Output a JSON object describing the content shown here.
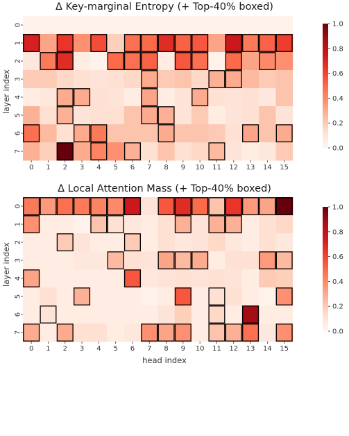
{
  "chart_data": [
    {
      "type": "heatmap",
      "title": "Δ Key-marginal Entropy (+ Top-40% boxed)",
      "xlabel": "",
      "ylabel": "layer index",
      "x_ticks": [
        "0",
        "1",
        "2",
        "3",
        "4",
        "5",
        "6",
        "7",
        "8",
        "9",
        "10",
        "11",
        "12",
        "13",
        "14",
        "15"
      ],
      "y_ticks": [
        "0",
        "1",
        "2",
        "3",
        "4",
        "5",
        "6",
        "7"
      ],
      "colorbar": {
        "min": 0.0,
        "max": 1.0,
        "ticks": [
          "0.0",
          "0.2",
          "0.4",
          "0.6",
          "0.8",
          "1.0"
        ],
        "colormap": "Reds"
      },
      "values": [
        [
          0.02,
          0.02,
          0.02,
          0.02,
          0.02,
          0.02,
          0.02,
          0.02,
          0.02,
          0.02,
          0.02,
          0.02,
          0.02,
          0.02,
          0.02,
          0.02
        ],
        [
          0.72,
          0.32,
          0.65,
          0.38,
          0.58,
          0.18,
          0.48,
          0.5,
          0.68,
          0.52,
          0.55,
          0.32,
          0.75,
          0.45,
          0.52,
          0.62
        ],
        [
          0.08,
          0.45,
          0.68,
          0.05,
          0.02,
          0.5,
          0.48,
          0.52,
          0.05,
          0.55,
          0.48,
          0.02,
          0.5,
          0.32,
          0.4,
          0.38
        ],
        [
          0.2,
          0.2,
          0.15,
          0.12,
          0.1,
          0.12,
          0.15,
          0.3,
          0.2,
          0.22,
          0.15,
          0.28,
          0.3,
          0.25,
          0.2,
          0.22
        ],
        [
          0.05,
          0.08,
          0.3,
          0.3,
          0.12,
          0.1,
          0.05,
          0.32,
          0.05,
          0.1,
          0.3,
          0.12,
          0.1,
          0.12,
          0.08,
          0.22
        ],
        [
          0.28,
          0.12,
          0.28,
          0.1,
          0.12,
          0.12,
          0.22,
          0.3,
          0.28,
          0.1,
          0.2,
          0.05,
          0.1,
          0.12,
          0.22,
          0.1
        ],
        [
          0.48,
          0.25,
          0.12,
          0.3,
          0.45,
          0.22,
          0.22,
          0.22,
          0.3,
          0.22,
          0.22,
          0.2,
          0.12,
          0.32,
          0.22,
          0.3
        ],
        [
          0.28,
          0.18,
          1.0,
          0.3,
          0.42,
          0.38,
          0.28,
          0.12,
          0.22,
          0.12,
          0.15,
          0.25,
          0.1,
          0.05,
          0.08,
          0.2
        ]
      ],
      "boxed": [
        [
          0,
          0,
          0,
          0,
          0,
          0,
          0,
          0,
          0,
          0,
          0,
          0,
          0,
          0,
          0,
          0
        ],
        [
          1,
          0,
          1,
          0,
          1,
          0,
          1,
          1,
          1,
          1,
          1,
          0,
          1,
          1,
          1,
          1
        ],
        [
          0,
          1,
          1,
          0,
          0,
          1,
          1,
          1,
          0,
          1,
          1,
          0,
          1,
          0,
          1,
          0
        ],
        [
          0,
          0,
          0,
          0,
          0,
          0,
          0,
          1,
          0,
          0,
          0,
          1,
          1,
          0,
          0,
          0
        ],
        [
          0,
          0,
          1,
          1,
          0,
          0,
          0,
          1,
          0,
          0,
          1,
          0,
          0,
          0,
          0,
          0
        ],
        [
          0,
          0,
          1,
          0,
          0,
          0,
          0,
          1,
          1,
          0,
          0,
          0,
          0,
          0,
          0,
          0
        ],
        [
          1,
          0,
          0,
          1,
          1,
          0,
          0,
          0,
          1,
          0,
          0,
          0,
          0,
          1,
          0,
          1
        ],
        [
          0,
          0,
          1,
          0,
          1,
          0,
          1,
          0,
          0,
          0,
          0,
          1,
          0,
          0,
          0,
          0
        ]
      ]
    },
    {
      "type": "heatmap",
      "title": "Δ Local Attention Mass (+ Top-40% boxed)",
      "xlabel": "head index",
      "ylabel": "layer index",
      "x_ticks": [
        "0",
        "1",
        "2",
        "3",
        "4",
        "5",
        "6",
        "7",
        "8",
        "9",
        "10",
        "11",
        "12",
        "13",
        "14",
        "15"
      ],
      "y_ticks": [
        "0",
        "1",
        "2",
        "3",
        "4",
        "5",
        "6",
        "7"
      ],
      "colorbar": {
        "min": 0.0,
        "max": 1.0,
        "ticks": [
          "0.0",
          "0.2",
          "0.4",
          "0.6",
          "0.8",
          "1.0"
        ],
        "colormap": "Reds"
      },
      "values": [
        [
          0.45,
          0.35,
          0.48,
          0.45,
          0.42,
          0.4,
          0.75,
          0.1,
          0.55,
          0.68,
          0.5,
          0.22,
          0.65,
          0.35,
          0.32,
          1.0
        ],
        [
          0.38,
          0.05,
          0.05,
          0.02,
          0.22,
          0.12,
          0.08,
          0.05,
          0.12,
          0.28,
          0.1,
          0.28,
          0.28,
          0.05,
          0.12,
          0.15
        ],
        [
          0.05,
          0.05,
          0.2,
          0.1,
          0.05,
          0.05,
          0.2,
          0.05,
          0.12,
          0.08,
          0.1,
          0.15,
          0.08,
          0.05,
          0.12,
          0.08
        ],
        [
          0.05,
          0.05,
          0.05,
          0.08,
          0.08,
          0.25,
          0.12,
          0.1,
          0.32,
          0.25,
          0.3,
          0.05,
          0.12,
          0.12,
          0.35,
          0.25
        ],
        [
          0.32,
          0.05,
          0.05,
          0.05,
          0.05,
          0.05,
          0.55,
          0.08,
          0.1,
          0.12,
          0.1,
          0.12,
          0.1,
          0.05,
          0.2,
          0.18
        ],
        [
          0.05,
          0.12,
          0.05,
          0.28,
          0.05,
          0.05,
          0.05,
          0.02,
          0.05,
          0.55,
          0.05,
          0.12,
          0.12,
          0.05,
          0.02,
          0.38
        ],
        [
          0.05,
          0.1,
          0.05,
          0.05,
          0.05,
          0.05,
          0.05,
          0.05,
          0.1,
          0.18,
          0.05,
          0.15,
          0.05,
          0.88,
          0.05,
          0.05
        ],
        [
          0.3,
          0.05,
          0.3,
          0.12,
          0.12,
          0.05,
          0.08,
          0.38,
          0.32,
          0.38,
          0.05,
          0.22,
          0.28,
          0.48,
          0.08,
          0.38
        ]
      ],
      "boxed": [
        [
          1,
          1,
          1,
          1,
          1,
          1,
          1,
          0,
          1,
          1,
          1,
          1,
          1,
          1,
          1,
          1
        ],
        [
          1,
          0,
          0,
          0,
          1,
          1,
          0,
          0,
          0,
          1,
          0,
          1,
          1,
          0,
          0,
          0
        ],
        [
          0,
          0,
          1,
          0,
          0,
          0,
          1,
          0,
          0,
          0,
          0,
          0,
          0,
          0,
          0,
          0
        ],
        [
          0,
          0,
          0,
          0,
          0,
          1,
          0,
          0,
          1,
          1,
          1,
          0,
          0,
          0,
          1,
          1
        ],
        [
          1,
          0,
          0,
          0,
          0,
          0,
          1,
          0,
          0,
          0,
          0,
          0,
          0,
          0,
          0,
          0
        ],
        [
          0,
          0,
          0,
          1,
          0,
          0,
          0,
          0,
          0,
          1,
          0,
          1,
          0,
          0,
          0,
          1
        ],
        [
          0,
          1,
          0,
          0,
          0,
          0,
          0,
          0,
          0,
          0,
          0,
          1,
          0,
          1,
          0,
          0
        ],
        [
          1,
          0,
          1,
          0,
          0,
          0,
          0,
          1,
          1,
          1,
          0,
          1,
          1,
          1,
          0,
          1
        ]
      ]
    }
  ]
}
